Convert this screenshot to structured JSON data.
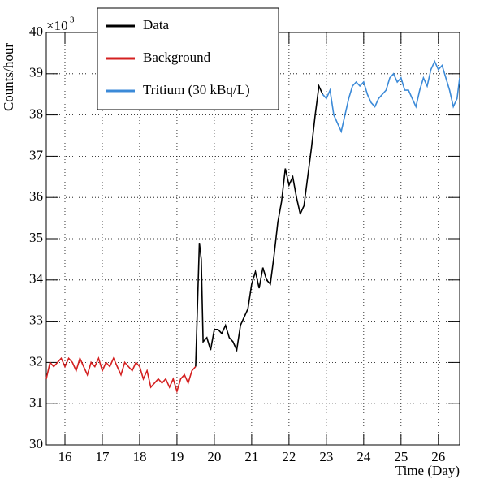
{
  "chart_data": {
    "type": "line",
    "y_label": "Counts/hour",
    "x_label": "Time (Day)",
    "y_multiplier": "×10",
    "y_exponent": "3",
    "xlim": [
      15.5,
      26.57
    ],
    "ylim": [
      30,
      40
    ],
    "xticks": [
      16,
      17,
      18,
      19,
      20,
      21,
      22,
      23,
      24,
      25,
      26
    ],
    "yticks": [
      30,
      31,
      32,
      33,
      34,
      35,
      36,
      37,
      38,
      39,
      40
    ],
    "grid": true,
    "legend": "top",
    "series": [
      {
        "name": "Data",
        "color": "#000000",
        "x": [
          19.5,
          19.6,
          19.65,
          19.7,
          19.8,
          19.9,
          20.0,
          20.1,
          20.2,
          20.3,
          20.4,
          20.5,
          20.6,
          20.7,
          20.8,
          20.9,
          21.0,
          21.1,
          21.2,
          21.3,
          21.4,
          21.5,
          21.6,
          21.7,
          21.8,
          21.9,
          22.0,
          22.1,
          22.2,
          22.3,
          22.4,
          22.5,
          22.6,
          22.7,
          22.8,
          22.9
        ],
        "values": [
          31.9,
          34.9,
          34.5,
          32.5,
          32.6,
          32.3,
          32.8,
          32.8,
          32.7,
          32.9,
          32.6,
          32.5,
          32.3,
          32.9,
          33.1,
          33.3,
          33.9,
          34.2,
          33.8,
          34.3,
          34.0,
          33.9,
          34.6,
          35.4,
          35.9,
          36.7,
          36.3,
          36.5,
          36.0,
          35.6,
          35.8,
          36.5,
          37.2,
          38.0,
          38.7,
          38.5
        ]
      },
      {
        "name": "Background",
        "color": "#d42020",
        "x": [
          15.5,
          15.6,
          15.7,
          15.8,
          15.9,
          16.0,
          16.1,
          16.2,
          16.3,
          16.4,
          16.5,
          16.6,
          16.7,
          16.8,
          16.9,
          17.0,
          17.1,
          17.2,
          17.3,
          17.4,
          17.5,
          17.6,
          17.7,
          17.8,
          17.9,
          18.0,
          18.1,
          18.2,
          18.3,
          18.4,
          18.5,
          18.6,
          18.7,
          18.8,
          18.9,
          19.0,
          19.1,
          19.2,
          19.3,
          19.4,
          19.5
        ],
        "values": [
          31.6,
          32.0,
          31.9,
          32.0,
          32.1,
          31.9,
          32.1,
          32.0,
          31.8,
          32.1,
          31.9,
          31.7,
          32.0,
          31.9,
          32.1,
          31.8,
          32.0,
          31.9,
          32.1,
          31.9,
          31.7,
          32.0,
          31.9,
          31.8,
          32.0,
          31.9,
          31.6,
          31.8,
          31.4,
          31.5,
          31.6,
          31.5,
          31.6,
          31.4,
          31.6,
          31.3,
          31.6,
          31.7,
          31.5,
          31.8,
          31.9
        ]
      },
      {
        "name": "Tritium (30 kBq/L)",
        "color": "#3b8ad8",
        "x": [
          22.9,
          23.0,
          23.1,
          23.2,
          23.3,
          23.4,
          23.5,
          23.6,
          23.7,
          23.8,
          23.9,
          24.0,
          24.1,
          24.2,
          24.3,
          24.4,
          24.5,
          24.6,
          24.7,
          24.8,
          24.9,
          25.0,
          25.1,
          25.2,
          25.3,
          25.4,
          25.5,
          25.6,
          25.7,
          25.8,
          25.9,
          26.0,
          26.1,
          26.2,
          26.3,
          26.4,
          26.5,
          26.57
        ],
        "values": [
          38.5,
          38.4,
          38.6,
          38.0,
          37.8,
          37.6,
          38.0,
          38.4,
          38.7,
          38.8,
          38.7,
          38.8,
          38.5,
          38.3,
          38.2,
          38.4,
          38.5,
          38.6,
          38.9,
          39.0,
          38.8,
          38.9,
          38.6,
          38.6,
          38.4,
          38.2,
          38.6,
          38.9,
          38.7,
          39.1,
          39.3,
          39.1,
          39.2,
          38.9,
          38.6,
          38.2,
          38.4,
          38.9
        ]
      }
    ]
  }
}
